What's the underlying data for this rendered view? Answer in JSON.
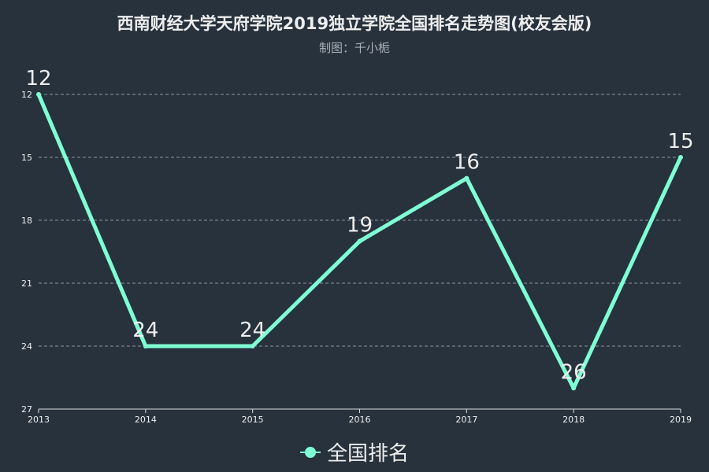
{
  "chart_data": {
    "type": "line",
    "title": "西南财经大学天府学院2019独立学院全国排名走势图(校友会版)",
    "subtitle": "制图：千小栀",
    "categories": [
      "2013",
      "2014",
      "2015",
      "2016",
      "2017",
      "2018",
      "2019"
    ],
    "series": [
      {
        "name": "全国排名",
        "values": [
          12,
          24,
          24,
          19,
          16,
          26,
          15
        ],
        "color": "#7fffd4"
      }
    ],
    "y_ticks": [
      "12",
      "15",
      "18",
      "21",
      "24",
      "27"
    ],
    "ylim": [
      12,
      27
    ],
    "y_inverted": true,
    "grid": true,
    "legend_position": "bottom-center"
  }
}
